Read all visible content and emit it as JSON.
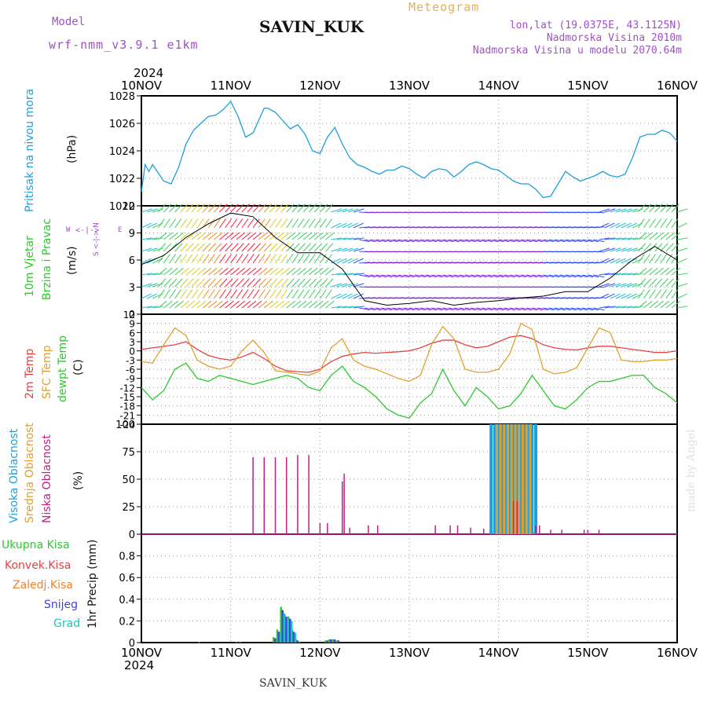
{
  "header": {
    "model_label": "Model",
    "model_name": "wrf-nmm_v3.9.1 e1km",
    "station": "SAVIN_KUK",
    "meteogram": "Meteogram",
    "lonlat": "lon,lat (19.0375E, 43.1125N)",
    "altitude": "Nadmorska Visina 2010m",
    "model_altitude": "Nadmorska Visina u modelu 2070.64m",
    "footer_station": "SAVIN_KUK",
    "credit": "made by Angel"
  },
  "colors": {
    "pressure": "#1e9fdc",
    "temp2m": "#e84040",
    "sfc": "#e0a030",
    "dewpt": "#2ec82e",
    "high_cloud": "#1e9fdc",
    "mid_cloud": "#e0a030",
    "low_cloud": "#c0208a",
    "total_precip": "#2ec82e",
    "conv_precip": "#e84040",
    "snow": "#4040e0",
    "hail": "#20c0c0",
    "purple_text": "#a050c8",
    "orange_text": "#e8b050"
  },
  "chart_data": [
    {
      "type": "line",
      "panel": "pressure",
      "ylabel": [
        "Pritisak na nivou mora",
        "(hPa)"
      ],
      "ylim": [
        1020,
        1028
      ],
      "yticks": [
        1020,
        1022,
        1024,
        1026,
        1028
      ],
      "grid": true,
      "x_hours": [
        0,
        1,
        2,
        3,
        4,
        6,
        8,
        10,
        12,
        14,
        16,
        18,
        20,
        21,
        22,
        24,
        26,
        28,
        30,
        32,
        33,
        34,
        36,
        38,
        40,
        42,
        44,
        46,
        48,
        50,
        52,
        54,
        56,
        58,
        60,
        62,
        64,
        66,
        68,
        70,
        72,
        74,
        76,
        78,
        80,
        82,
        84,
        86,
        88,
        90,
        92,
        94,
        96,
        98,
        100,
        102,
        104,
        106,
        108,
        110,
        112,
        114,
        116,
        118,
        120,
        122,
        124,
        126,
        128,
        130,
        132,
        134,
        136,
        138,
        140,
        142,
        144
      ],
      "series": [
        {
          "values": [
            1021.0,
            1023.0,
            1022.5,
            1023.0,
            1022.6,
            1021.8,
            1021.6,
            1022.8,
            1024.5,
            1025.5,
            1026.0,
            1026.5,
            1026.6,
            1026.8,
            1027.0,
            1027.6,
            1026.5,
            1025.0,
            1025.3,
            1026.5,
            1027.1,
            1027.1,
            1026.8,
            1026.2,
            1025.6,
            1025.9,
            1025.2,
            1024.0,
            1023.8,
            1025.0,
            1025.7,
            1024.5,
            1023.5,
            1023.0,
            1022.8,
            1022.5,
            1022.3,
            1022.6,
            1022.6,
            1022.9,
            1022.7,
            1022.3,
            1022.0,
            1022.5,
            1022.7,
            1022.6,
            1022.1,
            1022.5,
            1023.0,
            1023.2,
            1023.0,
            1022.7,
            1022.6,
            1022.2,
            1021.8,
            1021.6,
            1021.6,
            1021.2,
            1020.6,
            1020.7,
            1021.6,
            1022.5,
            1022.1,
            1021.8,
            1022.0,
            1022.2,
            1022.5,
            1022.2,
            1022.1,
            1022.3,
            1023.5,
            1025.0,
            1025.2,
            1025.2,
            1025.5,
            1025.3,
            1024.7
          ]
        }
      ]
    },
    {
      "type": "barbs",
      "panel": "wind",
      "ylabel": [
        "10m Vjetar",
        "Brzina i Pravac",
        "(m/s)"
      ],
      "ylim": [
        0,
        12
      ],
      "yticks": [
        0,
        3,
        6,
        9,
        12
      ],
      "grid": true,
      "compass": [
        "W",
        "E",
        "S",
        "N"
      ],
      "x_hours": [
        0,
        6,
        12,
        18,
        24,
        30,
        36,
        42,
        48,
        54,
        60,
        66,
        72,
        78,
        84,
        90,
        96,
        102,
        108,
        114,
        120,
        126,
        132,
        138,
        144
      ],
      "speed": [
        5.5,
        6.5,
        8.5,
        10.0,
        11.2,
        10.8,
        8.5,
        6.8,
        6.8,
        5.0,
        1.5,
        1.0,
        1.2,
        1.5,
        1.0,
        1.3,
        1.5,
        1.8,
        2.0,
        2.5,
        2.5,
        4.0,
        6.0,
        7.5,
        6.0
      ]
    },
    {
      "type": "line",
      "panel": "temperature",
      "ylabel": [
        "2m Temp",
        "SFC Temp",
        "dewpt Temp",
        "(C)"
      ],
      "ylim": [
        -24,
        12
      ],
      "yticks": [
        12,
        9,
        6,
        3,
        0,
        -3,
        -6,
        -9,
        -12,
        -15,
        -18,
        -21,
        -24
      ],
      "grid": true,
      "x_hours": [
        0,
        3,
        6,
        9,
        12,
        15,
        18,
        21,
        24,
        27,
        30,
        33,
        36,
        39,
        42,
        45,
        48,
        51,
        54,
        57,
        60,
        63,
        66,
        69,
        72,
        75,
        78,
        81,
        84,
        87,
        90,
        93,
        96,
        99,
        102,
        105,
        108,
        111,
        114,
        117,
        120,
        123,
        126,
        129,
        132,
        135,
        138,
        141,
        144
      ],
      "series": [
        {
          "name": "2m Temp",
          "values": [
            0.5,
            1.0,
            1.5,
            2.0,
            3.0,
            0.5,
            -1.5,
            -2.5,
            -3.0,
            -2.0,
            -0.5,
            -2.5,
            -5.0,
            -6.5,
            -6.8,
            -7.0,
            -6.0,
            -3.5,
            -1.8,
            -1.0,
            -0.5,
            -0.8,
            -0.5,
            -0.3,
            0.0,
            1.0,
            2.5,
            3.5,
            3.5,
            2.0,
            1.0,
            1.5,
            3.0,
            4.5,
            5.0,
            4.0,
            2.0,
            1.0,
            0.5,
            0.3,
            1.0,
            1.5,
            1.5,
            1.0,
            0.5,
            0.0,
            -0.5,
            -0.5,
            0.0
          ]
        },
        {
          "name": "SFC Temp",
          "values": [
            -3.5,
            -4.0,
            2.0,
            7.5,
            5.0,
            -3.0,
            -5.0,
            -6.0,
            -5.0,
            0.0,
            3.5,
            -0.5,
            -6.5,
            -7.0,
            -7.5,
            -8.0,
            -6.5,
            1.0,
            4.0,
            -3.0,
            -5.0,
            -6.0,
            -7.5,
            -9.0,
            -10.0,
            -8.0,
            2.0,
            8.0,
            4.0,
            -6.0,
            -7.0,
            -7.0,
            -6.0,
            -1.0,
            9.0,
            7.0,
            -6.0,
            -7.5,
            -7.0,
            -5.5,
            1.0,
            7.5,
            6.0,
            -3.0,
            -3.5,
            -3.5,
            -3.0,
            -3.0,
            -2.5
          ]
        },
        {
          "name": "dewpt Temp",
          "values": [
            -12.0,
            -16.0,
            -13.0,
            -6.0,
            -4.0,
            -9.0,
            -10.0,
            -8.0,
            -9.0,
            -10.0,
            -11.0,
            -10.0,
            -9.0,
            -8.0,
            -9.0,
            -12.0,
            -13.0,
            -8.0,
            -5.0,
            -10.0,
            -12.0,
            -15.0,
            -19.0,
            -21.0,
            -22.0,
            -17.0,
            -14.0,
            -6.0,
            -13.0,
            -18.0,
            -12.0,
            -15.0,
            -19.0,
            -18.0,
            -14.0,
            -8.0,
            -13.0,
            -18.0,
            -19.0,
            -16.0,
            -12.0,
            -10.0,
            -10.0,
            -9.0,
            -8.0,
            -8.0,
            -12.0,
            -14.0,
            -17.0
          ]
        }
      ]
    },
    {
      "type": "bar",
      "panel": "cloud",
      "ylabel": [
        "Visoka Oblacnost",
        "Srednja Oblacnost",
        "Niska Oblacnost",
        "(%)"
      ],
      "ylim": [
        0,
        100
      ],
      "yticks": [
        0,
        25,
        50,
        75,
        100
      ],
      "grid": true,
      "series": [
        {
          "name": "Visoka Oblacnost",
          "x_hours": [
            94,
            95,
            96,
            97,
            98,
            99,
            100,
            101,
            102,
            103,
            104,
            105,
            106
          ],
          "values": [
            100,
            100,
            100,
            100,
            100,
            100,
            100,
            100,
            100,
            100,
            100,
            100,
            100
          ]
        },
        {
          "name": "Srednja Oblacnost",
          "x_hours": [
            95.5,
            96.5,
            97.5,
            98.5,
            99.5,
            100.5,
            101.5,
            102.5,
            103.5,
            104.5
          ],
          "values": [
            100,
            100,
            100,
            100,
            100,
            100,
            100,
            100,
            100,
            100
          ]
        },
        {
          "name": "Niska Oblacnost",
          "x_hours": [
            30,
            33,
            36,
            39,
            42,
            45,
            48,
            50,
            54,
            54.5,
            56,
            61,
            63.5,
            79,
            83,
            85,
            88.5,
            92,
            100,
            101,
            106,
            107,
            110,
            113,
            119,
            120,
            123
          ],
          "values": [
            70,
            70,
            70,
            70,
            72,
            72,
            10,
            10,
            48,
            55,
            6,
            8,
            8,
            8,
            8,
            8,
            6,
            5,
            30,
            30,
            8,
            8,
            4,
            4,
            4,
            4,
            4
          ]
        }
      ]
    },
    {
      "type": "bar",
      "panel": "precipitation",
      "ylabel": [
        "1hr Precip (mm)"
      ],
      "legend": [
        "Ukupna Kisa",
        "Konvek.Kisa",
        "Zaledj.Kisa",
        "Snijeg",
        "Grad"
      ],
      "ylim": [
        0,
        1.0
      ],
      "yticks": [
        0,
        0.2,
        0.4,
        0.6,
        0.8
      ],
      "grid": true,
      "series": [
        {
          "name": "Ukupna Kisa",
          "x_hours": [
            16,
            26,
            27,
            36,
            37,
            38,
            39,
            40,
            41,
            42,
            43,
            50,
            51,
            52,
            53
          ],
          "values": [
            0.005,
            0.005,
            0.01,
            0.05,
            0.12,
            0.33,
            0.26,
            0.24,
            0.12,
            0.03,
            0.01,
            0.02,
            0.03,
            0.03,
            0.02
          ]
        },
        {
          "name": "Snijeg",
          "x_hours": [
            36,
            37,
            38,
            39,
            40,
            41,
            42,
            50,
            51,
            52,
            53
          ],
          "values": [
            0.04,
            0.1,
            0.3,
            0.24,
            0.22,
            0.1,
            0.02,
            0.02,
            0.03,
            0.03,
            0.02
          ]
        },
        {
          "name": "Grad",
          "x_hours": [
            37,
            38,
            39,
            40,
            41
          ],
          "values": [
            0.09,
            0.27,
            0.22,
            0.2,
            0.09
          ]
        }
      ]
    }
  ],
  "xaxis": {
    "year": "2024",
    "day_labels": [
      "10NOV",
      "11NOV",
      "12NOV",
      "13NOV",
      "14NOV",
      "15NOV",
      "16NOV"
    ],
    "total_hours": 144
  }
}
